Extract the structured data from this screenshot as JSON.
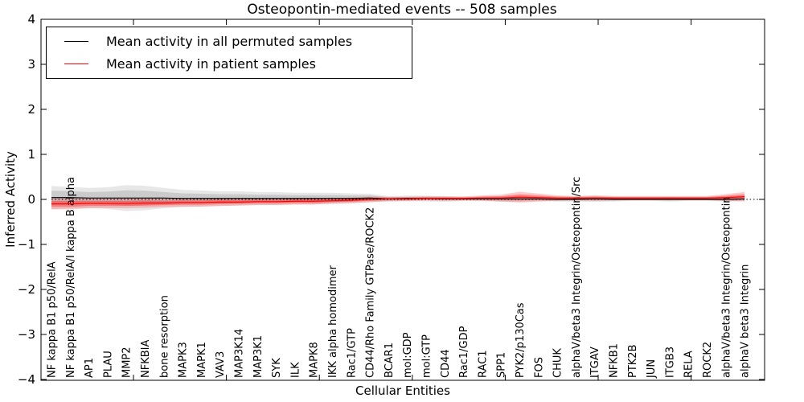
{
  "title": "Osteopontin-mediated events -- 508 samples",
  "chart_data": {
    "type": "line",
    "title": "Osteopontin-mediated events -- 508 samples",
    "xlabel": "Cellular Entities",
    "ylabel": "Inferred Activity",
    "ylim": [
      -4,
      4
    ],
    "yticks": [
      -4,
      -3,
      -2,
      -1,
      0,
      1,
      2,
      3,
      4
    ],
    "grid": false,
    "legend_position": "upper left",
    "zero_reference_line": "dotted horizontal line at y=0",
    "categories": [
      "NF kappa B1 p50/RelA",
      "NF kappa B1 p50/RelA/I kappa B alpha",
      "AP1",
      "PLAU",
      "MMP2",
      "NFKBIA",
      "bone resorption",
      "MAPK3",
      "MAPK1",
      "VAV3",
      "MAP3K14",
      "MAP3K1",
      "SYK",
      "ILK",
      "MAPK8",
      "IKK alpha homodimer",
      "Rac1/GTP",
      "CD44/Rho Family GTPase/ROCK2",
      "BCAR1",
      "mol:GDP",
      "mol:GTP",
      "CD44",
      "Rac1/GDP",
      "RAC1",
      "SPP1",
      "PYK2/p130Cas",
      "FOS",
      "CHUK",
      "alphaV/beta3 Integrin/Osteopontin/Src",
      "ITGAV",
      "NFKB1",
      "PTK2B",
      "JUN",
      "ITGB3",
      "RELA",
      "ROCK2",
      "alphaV/beta3 Integrin/Osteopontin",
      "alphaV beta3 Integrin"
    ],
    "series": [
      {
        "name": "Mean activity in all permuted samples",
        "color": "#000000",
        "band_color": "#b0b0b0",
        "values": [
          0.04,
          0.04,
          0.03,
          0.03,
          0.03,
          0.03,
          0.03,
          0.02,
          0.02,
          0.02,
          0.02,
          0.02,
          0.02,
          0.02,
          0.02,
          0.02,
          0.02,
          0.03,
          0.01,
          0.02,
          0.02,
          0.01,
          0.01,
          0.01,
          0.01,
          0.01,
          0.01,
          0.0,
          0.0,
          0.01,
          0.0,
          0.0,
          0.0,
          0.0,
          0.0,
          0.0,
          0.0,
          0.01
        ],
        "band_halfwidth": [
          0.16,
          0.15,
          0.14,
          0.15,
          0.18,
          0.17,
          0.14,
          0.12,
          0.11,
          0.1,
          0.1,
          0.09,
          0.09,
          0.08,
          0.08,
          0.08,
          0.07,
          0.06,
          0.04,
          0.04,
          0.04,
          0.04,
          0.03,
          0.03,
          0.04,
          0.04,
          0.03,
          0.03,
          0.03,
          0.04,
          0.03,
          0.02,
          0.02,
          0.03,
          0.02,
          0.02,
          0.03,
          0.03
        ]
      },
      {
        "name": "Mean activity in patient samples",
        "color": "#ff0000",
        "band_color": "#ff2a2a",
        "values": [
          -0.1,
          -0.1,
          -0.09,
          -0.09,
          -0.09,
          -0.08,
          -0.08,
          -0.07,
          -0.07,
          -0.06,
          -0.06,
          -0.05,
          -0.05,
          -0.04,
          -0.04,
          -0.03,
          -0.02,
          0.0,
          0.01,
          0.01,
          0.02,
          0.02,
          0.02,
          0.03,
          0.03,
          0.05,
          0.04,
          0.03,
          0.03,
          0.03,
          0.03,
          0.03,
          0.03,
          0.03,
          0.03,
          0.03,
          0.04,
          0.06
        ],
        "band_halfwidth": [
          0.08,
          0.08,
          0.07,
          0.07,
          0.07,
          0.07,
          0.06,
          0.06,
          0.06,
          0.06,
          0.05,
          0.05,
          0.05,
          0.05,
          0.05,
          0.04,
          0.04,
          0.04,
          0.03,
          0.03,
          0.03,
          0.03,
          0.03,
          0.04,
          0.05,
          0.08,
          0.06,
          0.04,
          0.03,
          0.04,
          0.03,
          0.03,
          0.03,
          0.03,
          0.03,
          0.03,
          0.05,
          0.07
        ]
      }
    ]
  }
}
